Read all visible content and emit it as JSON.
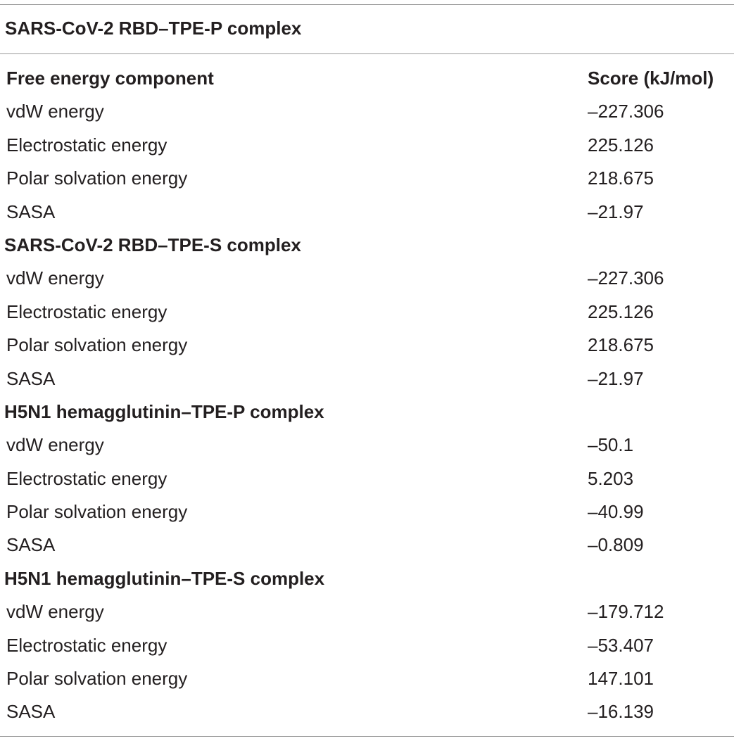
{
  "table": {
    "title": "SARS-CoV-2 RBD–TPE-P complex",
    "header": {
      "component": "Free energy component",
      "score": "Score (kJ/mol)"
    },
    "rows": [
      {
        "type": "data",
        "label": "vdW energy",
        "value": "–227.306"
      },
      {
        "type": "data",
        "label": "Electrostatic energy",
        "value": "225.126"
      },
      {
        "type": "data",
        "label": "Polar solvation energy",
        "value": "218.675"
      },
      {
        "type": "data",
        "label": "SASA",
        "value": "–21.97"
      },
      {
        "type": "group",
        "label": "SARS-CoV-2 RBD–TPE-S complex",
        "value": ""
      },
      {
        "type": "data",
        "label": "vdW energy",
        "value": "–227.306"
      },
      {
        "type": "data",
        "label": "Electrostatic energy",
        "value": "225.126"
      },
      {
        "type": "data",
        "label": "Polar solvation energy",
        "value": "218.675"
      },
      {
        "type": "data",
        "label": "SASA",
        "value": "–21.97"
      },
      {
        "type": "group",
        "label": "H5N1 hemagglutinin–TPE-P complex",
        "value": ""
      },
      {
        "type": "data",
        "label": "vdW energy",
        "value": "–50.1"
      },
      {
        "type": "data",
        "label": "Electrostatic energy",
        "value": "5.203"
      },
      {
        "type": "data",
        "label": "Polar solvation energy",
        "value": "–40.99"
      },
      {
        "type": "data",
        "label": "SASA",
        "value": "–0.809"
      },
      {
        "type": "group",
        "label": "H5N1 hemagglutinin–TPE-S complex",
        "value": ""
      },
      {
        "type": "data",
        "label": "vdW energy",
        "value": "–179.712"
      },
      {
        "type": "data",
        "label": "Electrostatic energy",
        "value": "–53.407"
      },
      {
        "type": "data",
        "label": "Polar solvation energy",
        "value": "147.101"
      },
      {
        "type": "data",
        "label": "SASA",
        "value": "–16.139"
      }
    ]
  }
}
